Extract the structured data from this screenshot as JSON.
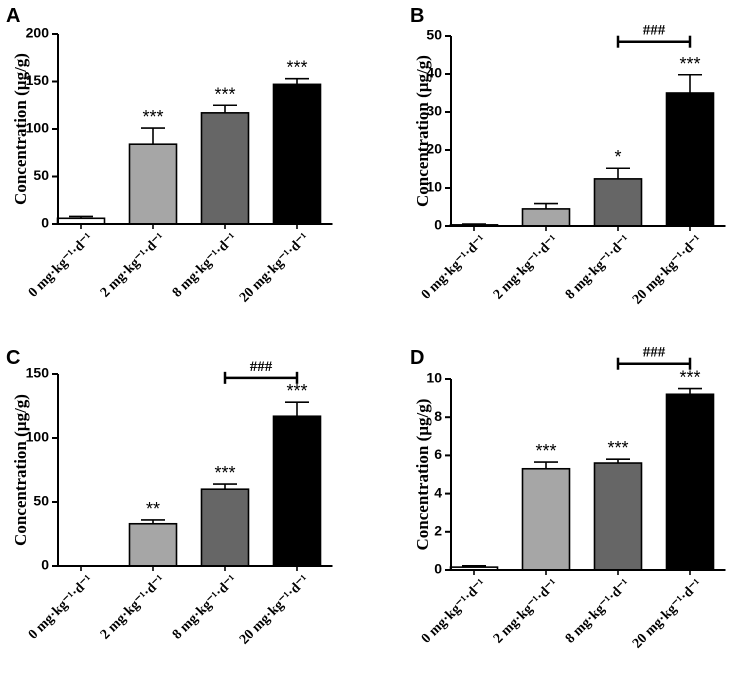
{
  "figure": {
    "ytick_suffix_note": "",
    "colors": {
      "bar_0": "#ffffff",
      "bar_2": "#a6a6a6",
      "bar_8": "#666666",
      "bar_20": "#000000",
      "axis": "#000000"
    }
  },
  "chart_data": [
    {
      "panel": "A",
      "type": "bar",
      "ylabel": "Concentration (µg/g)",
      "categories": [
        "0 mg·kg⁻¹·d⁻¹",
        "2 mg·kg⁻¹·d⁻¹",
        "8 mg·kg⁻¹·d⁻¹",
        "20 mg·kg⁻¹·d⁻¹"
      ],
      "values": [
        6,
        84,
        117,
        147
      ],
      "errors": [
        2,
        17,
        8,
        6
      ],
      "ylim": [
        0,
        200
      ],
      "yticks": [
        0,
        50,
        100,
        150,
        200
      ],
      "significance": [
        "",
        "***",
        "***",
        "***"
      ],
      "bracket": null
    },
    {
      "panel": "B",
      "type": "bar",
      "ylabel": "Concentration (µg/g)",
      "categories": [
        "0 mg·kg⁻¹·d⁻¹",
        "2 mg·kg⁻¹·d⁻¹",
        "8 mg·kg⁻¹·d⁻¹",
        "20 mg·kg⁻¹·d⁻¹"
      ],
      "values": [
        0.3,
        4.5,
        12.4,
        35
      ],
      "errors": [
        0.2,
        1.4,
        2.8,
        4.8
      ],
      "ylim": [
        0,
        50
      ],
      "yticks": [
        0,
        10,
        20,
        30,
        40,
        50
      ],
      "significance": [
        "",
        "",
        "*",
        "***"
      ],
      "bracket": {
        "from": 2,
        "to": 3,
        "label": "###",
        "y": 48.5
      }
    },
    {
      "panel": "C",
      "type": "bar",
      "ylabel": "Concentration (µg/g)",
      "categories": [
        "0 mg·kg⁻¹·d⁻¹",
        "2 mg·kg⁻¹·d⁻¹",
        "8 mg·kg⁻¹·d⁻¹",
        "20 mg·kg⁻¹·d⁻¹"
      ],
      "values": [
        0,
        33,
        60,
        117
      ],
      "errors": [
        0,
        3,
        4,
        11
      ],
      "ylim": [
        0,
        150
      ],
      "yticks": [
        0,
        50,
        100,
        150
      ],
      "significance": [
        "",
        "**",
        "***",
        "***"
      ],
      "bracket": {
        "from": 2,
        "to": 3,
        "label": "###",
        "y": 147
      }
    },
    {
      "panel": "D",
      "type": "bar",
      "ylabel": "Concentration (µg/g)",
      "categories": [
        "0 mg·kg⁻¹·d⁻¹",
        "2 mg·kg⁻¹·d⁻¹",
        "8 mg·kg⁻¹·d⁻¹",
        "20 mg·kg⁻¹·d⁻¹"
      ],
      "values": [
        0.15,
        5.3,
        5.6,
        9.2
      ],
      "errors": [
        0.07,
        0.35,
        0.2,
        0.3
      ],
      "ylim": [
        0,
        10
      ],
      "yticks": [
        0,
        2,
        4,
        6,
        8,
        10
      ],
      "significance": [
        "",
        "***",
        "***",
        "***"
      ],
      "bracket": {
        "from": 2,
        "to": 3,
        "label": "###",
        "y": 10.8
      }
    }
  ]
}
